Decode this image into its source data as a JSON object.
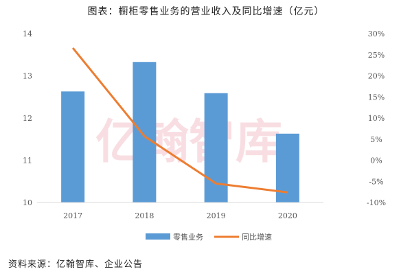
{
  "watermark": "亿翰智库",
  "chart_data": {
    "type": "bar+line",
    "title": "图表：橱柜零售业务的营业收入及同比增速（亿元）",
    "categories": [
      "2017",
      "2018",
      "2019",
      "2020"
    ],
    "series": [
      {
        "name": "零售业务",
        "type": "bar",
        "axis": "left",
        "color": "#5b9bd5",
        "values": [
          12.63,
          13.33,
          12.59,
          11.63
        ]
      },
      {
        "name": "同比增速",
        "type": "line",
        "axis": "right",
        "color": "#ed7d31",
        "values": [
          26.6,
          5.7,
          -5.5,
          -7.6
        ]
      }
    ],
    "left_axis": {
      "range": [
        10,
        14
      ],
      "ticks": [
        "10",
        "11",
        "12",
        "13",
        "14"
      ]
    },
    "right_axis": {
      "range": [
        -10,
        30
      ],
      "unit": "%",
      "ticks": [
        "-10%",
        "-5%",
        "0%",
        "5%",
        "10%",
        "15%",
        "20%",
        "25%",
        "30%"
      ]
    },
    "grid": false,
    "legend": "bottom",
    "source": "资料来源：亿翰智库、企业公告"
  }
}
